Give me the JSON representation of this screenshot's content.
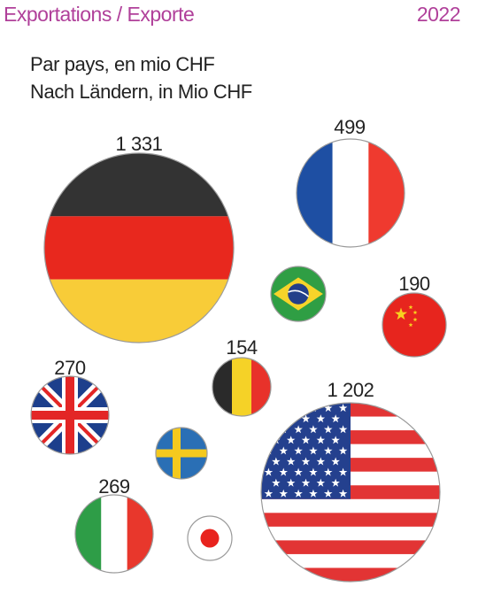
{
  "header": {
    "title": "Exportations / Exporte",
    "year": "2022",
    "subtitle_fr": "Par pays, en mio CHF",
    "subtitle_de": "Nach Ländern, in Mio CHF"
  },
  "colors": {
    "accent": "#b0409a",
    "text": "#222222"
  },
  "chart_data": {
    "type": "bubble",
    "title": "Exportations / Exporte",
    "subtitle": [
      "Par pays, en mio CHF",
      "Nach Ländern, in Mio CHF"
    ],
    "unit": "mio CHF",
    "year": "2022",
    "points": [
      {
        "country": "germany",
        "flag": "germany-flag",
        "value": 1331,
        "label": "1 331"
      },
      {
        "country": "france",
        "flag": "france-flag",
        "value": 499,
        "label": "499"
      },
      {
        "country": "brazil",
        "flag": "brazil-flag",
        "value": null,
        "label": ""
      },
      {
        "country": "china",
        "flag": "china-flag",
        "value": 190,
        "label": "190"
      },
      {
        "country": "belgium",
        "flag": "belgium-flag",
        "value": 154,
        "label": "154"
      },
      {
        "country": "united-kingdom",
        "flag": "uk-flag",
        "value": 270,
        "label": "270"
      },
      {
        "country": "sweden",
        "flag": "sweden-flag",
        "value": null,
        "label": ""
      },
      {
        "country": "united-states",
        "flag": "usa-flag",
        "value": 1202,
        "label": "1 202"
      },
      {
        "country": "italy",
        "flag": "italy-flag",
        "value": 269,
        "label": "269"
      },
      {
        "country": "japan",
        "flag": "japan-flag",
        "value": null,
        "label": ""
      }
    ]
  }
}
